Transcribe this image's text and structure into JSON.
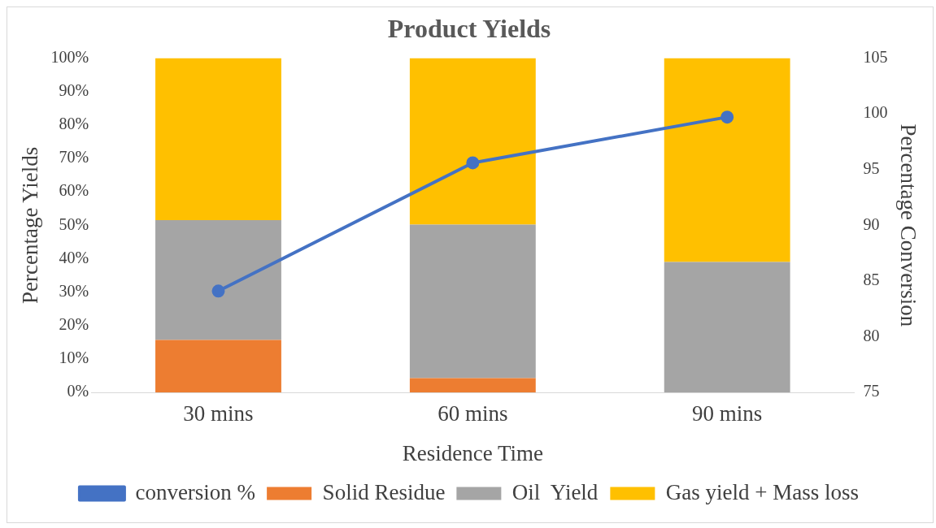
{
  "chart_data": {
    "type": "bar",
    "title": "Product Yields",
    "xlabel": "Residence Time",
    "ylabel": "Percentage Yields",
    "y2label": "Percentage Conversion",
    "categories": [
      "30 mins",
      "60 mins",
      "90 mins"
    ],
    "stacked": true,
    "series": [
      {
        "name": "Solid Residue",
        "color": "#ed7d31",
        "values": [
          15.7,
          4.3,
          0
        ]
      },
      {
        "name": "Oil  Yield",
        "color": "#a5a5a5",
        "values": [
          35.8,
          45.9,
          39
        ]
      },
      {
        "name": "Gas yield + Mass loss",
        "color": "#ffc000",
        "values": [
          48.5,
          49.8,
          61
        ]
      },
      {
        "name": "conversion %",
        "type": "line",
        "axis": "y2",
        "color": "#4472c4",
        "marker": "circle",
        "values": [
          84.1,
          95.6,
          99.7
        ]
      }
    ],
    "ylim": [
      0,
      100
    ],
    "yticks": [
      {
        "value": 0,
        "label": "0%"
      },
      {
        "value": 10,
        "label": "10%"
      },
      {
        "value": 20,
        "label": "20%"
      },
      {
        "value": 30,
        "label": "30%"
      },
      {
        "value": 40,
        "label": "40%"
      },
      {
        "value": 50,
        "label": "50%"
      },
      {
        "value": 60,
        "label": "60%"
      },
      {
        "value": 70,
        "label": "70%"
      },
      {
        "value": 80,
        "label": "80%"
      },
      {
        "value": 90,
        "label": "90%"
      },
      {
        "value": 100,
        "label": "100%"
      }
    ],
    "y2lim": [
      75,
      105
    ],
    "y2ticks": [
      75,
      80,
      85,
      90,
      95,
      100,
      105
    ],
    "grid": false,
    "legend": "bottom"
  }
}
